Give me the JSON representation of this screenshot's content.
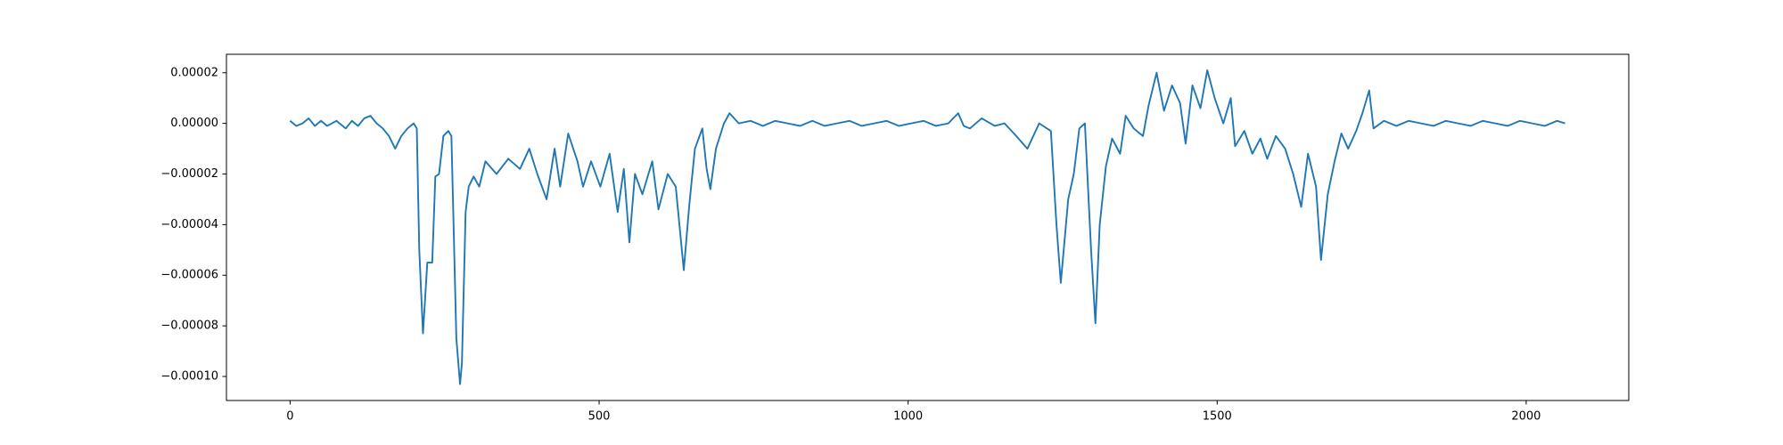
{
  "chart_data": {
    "type": "line",
    "color": "#1f77b4",
    "xlim": [
      -103,
      2166
    ],
    "ylim": [
      -0.0001095,
      2.73e-05
    ],
    "xticks": [
      0,
      500,
      1000,
      1500,
      2000
    ],
    "yticks": [
      {
        "value": -0.0001,
        "label": "−0.00010"
      },
      {
        "value": -8e-05,
        "label": "−0.00008"
      },
      {
        "value": -6e-05,
        "label": "−0.00006"
      },
      {
        "value": -4e-05,
        "label": "−0.00004"
      },
      {
        "value": -2e-05,
        "label": "−0.00002"
      },
      {
        "value": 0,
        "label": "0.00000"
      },
      {
        "value": 2e-05,
        "label": "0.00002"
      }
    ],
    "x": [
      0,
      10,
      20,
      30,
      40,
      50,
      60,
      75,
      90,
      100,
      110,
      120,
      130,
      140,
      150,
      160,
      170,
      180,
      190,
      200,
      205,
      209,
      215,
      222,
      230,
      235,
      241,
      248,
      256,
      261,
      269,
      275,
      278,
      284,
      289,
      297,
      306,
      316,
      334,
      353,
      372,
      387,
      400,
      415,
      428,
      437,
      450,
      465,
      474,
      487,
      502,
      517,
      530,
      540,
      549,
      558,
      570,
      586,
      596,
      611,
      624,
      637,
      646,
      655,
      667,
      674,
      680,
      689,
      702,
      711,
      726,
      745,
      765,
      785,
      805,
      825,
      845,
      865,
      885,
      905,
      925,
      945,
      965,
      985,
      1005,
      1025,
      1045,
      1065,
      1081,
      1090,
      1100,
      1119,
      1140,
      1156,
      1175,
      1193,
      1212,
      1231,
      1240,
      1247,
      1259,
      1268,
      1277,
      1286,
      1296,
      1303,
      1310,
      1320,
      1330,
      1343,
      1352,
      1365,
      1380,
      1389,
      1402,
      1414,
      1427,
      1440,
      1449,
      1460,
      1473,
      1484,
      1496,
      1510,
      1522,
      1529,
      1544,
      1557,
      1570,
      1581,
      1595,
      1610,
      1623,
      1636,
      1647,
      1660,
      1668,
      1679,
      1690,
      1701,
      1712,
      1725,
      1735,
      1746,
      1753,
      1770,
      1790,
      1810,
      1830,
      1850,
      1870,
      1890,
      1910,
      1930,
      1950,
      1970,
      1990,
      2010,
      2030,
      2050,
      2063
    ],
    "values": [
      1e-06,
      -1e-06,
      0,
      2e-06,
      -1e-06,
      1e-06,
      -1e-06,
      1e-06,
      -2e-06,
      1e-06,
      -1e-06,
      2e-06,
      3e-06,
      0,
      -2e-06,
      -5e-06,
      -1e-05,
      -5e-06,
      -2e-06,
      0,
      -2e-06,
      -5e-05,
      -8.3e-05,
      -5.5e-05,
      -5.5e-05,
      -2.1e-05,
      -2e-05,
      -5e-06,
      -3e-06,
      -5e-06,
      -8.5e-05,
      -0.000103,
      -9.5e-05,
      -3.5e-05,
      -2.5e-05,
      -2.1e-05,
      -2.5e-05,
      -1.5e-05,
      -2e-05,
      -1.4e-05,
      -1.8e-05,
      -1e-05,
      -2e-05,
      -3e-05,
      -1e-05,
      -2.5e-05,
      -4e-06,
      -1.5e-05,
      -2.5e-05,
      -1.5e-05,
      -2.5e-05,
      -1.2e-05,
      -3.5e-05,
      -1.8e-05,
      -4.7e-05,
      -2e-05,
      -2.8e-05,
      -1.5e-05,
      -3.4e-05,
      -2e-05,
      -2.5e-05,
      -5.8e-05,
      -3.2e-05,
      -1e-05,
      -2e-06,
      -1.8e-05,
      -2.6e-05,
      -1e-05,
      0,
      4e-06,
      0,
      1e-06,
      -1e-06,
      1e-06,
      0,
      -1e-06,
      1e-06,
      -1e-06,
      0,
      1e-06,
      -1e-06,
      0,
      1e-06,
      -1e-06,
      0,
      1e-06,
      -1e-06,
      0,
      4e-06,
      -1e-06,
      -2e-06,
      2e-06,
      -1e-06,
      0,
      -5e-06,
      -1e-05,
      0,
      -3e-06,
      -4e-05,
      -6.3e-05,
      -3e-05,
      -2e-05,
      -2e-06,
      0,
      -5e-05,
      -7.9e-05,
      -4e-05,
      -1.7e-05,
      -6e-06,
      -1.2e-05,
      3e-06,
      -2e-06,
      -5e-06,
      7e-06,
      2e-05,
      5e-06,
      1.5e-05,
      8e-06,
      -8e-06,
      1.5e-05,
      6e-06,
      2.1e-05,
      1e-05,
      0,
      1e-05,
      -9e-06,
      -3e-06,
      -1.2e-05,
      -6e-06,
      -1.4e-05,
      -5e-06,
      -1e-05,
      -2e-05,
      -3.3e-05,
      -1.2e-05,
      -2.5e-05,
      -5.4e-05,
      -2.8e-05,
      -1.5e-05,
      -4e-06,
      -1e-05,
      -3e-06,
      4e-06,
      1.3e-05,
      -2e-06,
      1e-06,
      -1e-06,
      1e-06,
      0,
      -1e-06,
      1e-06,
      0,
      -1e-06,
      1e-06,
      0,
      -1e-06,
      1e-06,
      0,
      -1e-06,
      1e-06,
      0
    ]
  }
}
